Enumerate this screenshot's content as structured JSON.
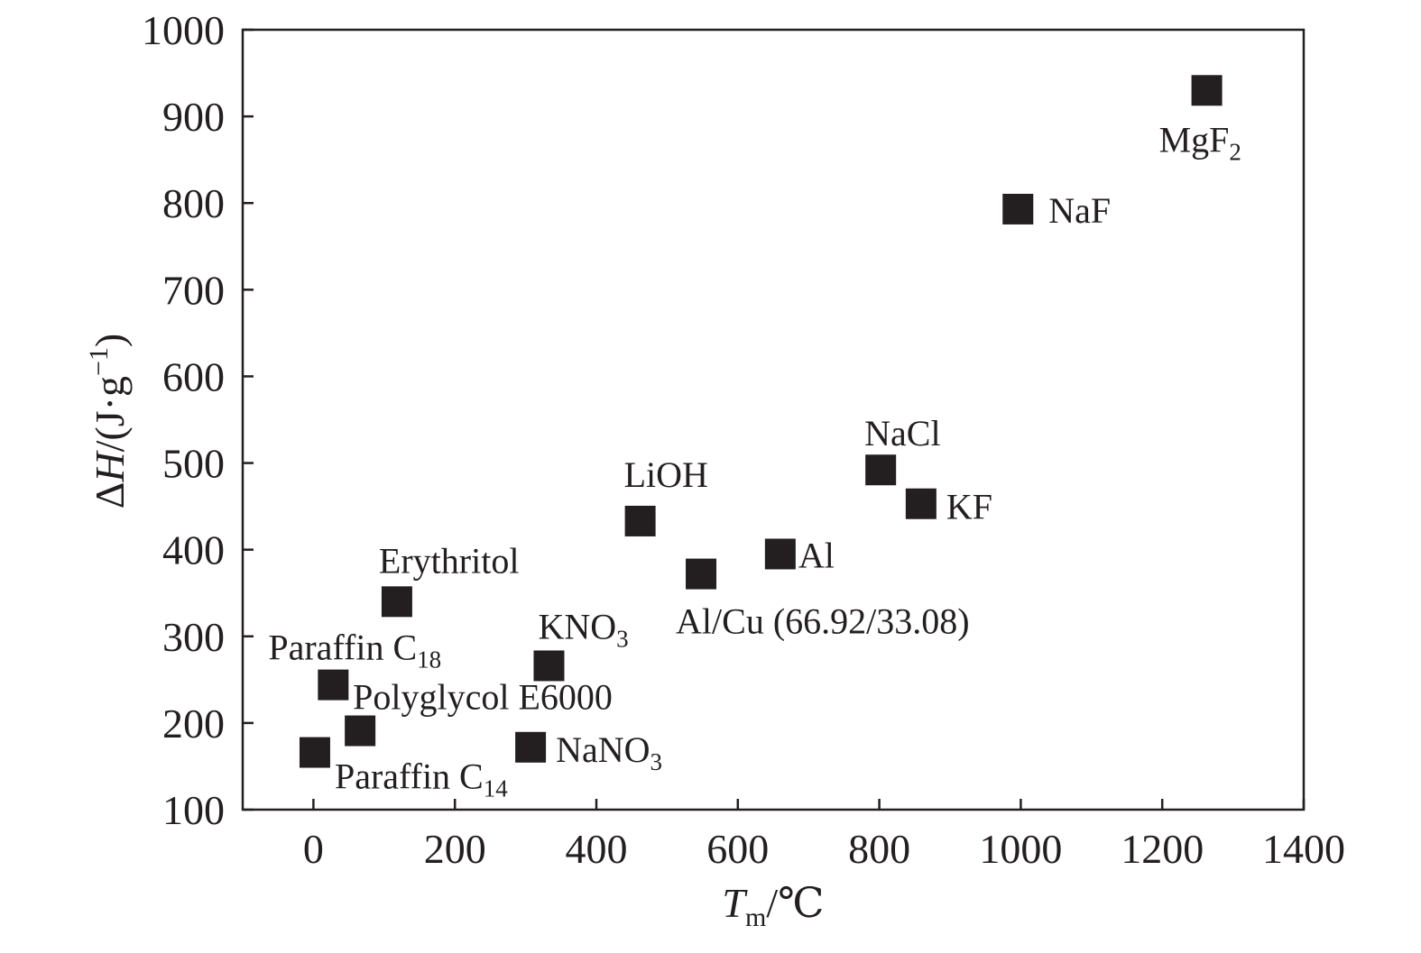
{
  "chart_data": {
    "type": "scatter",
    "xlabel": {
      "symbol": "T",
      "subscript": "m",
      "unit": "/℃"
    },
    "ylabel": {
      "prefix": "Δ",
      "symbol": "H",
      "unit": "/(J·g",
      "sup": "−1",
      "close": ")"
    },
    "xlim": [
      -100,
      1400
    ],
    "ylim": [
      100,
      1000
    ],
    "xticks": [
      "0",
      "200",
      "400",
      "600",
      "800",
      "1000",
      "1200",
      "1400"
    ],
    "xtick_values": [
      0,
      200,
      400,
      600,
      800,
      1000,
      1200,
      1400
    ],
    "yticks": [
      "100",
      "200",
      "300",
      "400",
      "500",
      "600",
      "700",
      "800",
      "900",
      "1000"
    ],
    "ytick_values": [
      100,
      200,
      300,
      400,
      500,
      600,
      700,
      800,
      900,
      1000
    ],
    "grid": false,
    "legend": "none",
    "marker_color": "#231f20",
    "points": [
      {
        "label": "Paraffin C",
        "sub": "14",
        "x": 2,
        "y": 166
      },
      {
        "label": "Paraffin C",
        "sub": "18",
        "x": 28,
        "y": 244
      },
      {
        "label": "Polyglycol E6000",
        "sub": "",
        "x": 66,
        "y": 191
      },
      {
        "label": "Erythritol",
        "sub": "",
        "x": 118,
        "y": 340
      },
      {
        "label": "NaNO",
        "sub": "3",
        "x": 307,
        "y": 172
      },
      {
        "label": "KNO",
        "sub": "3",
        "x": 333,
        "y": 266
      },
      {
        "label": "LiOH",
        "sub": "",
        "x": 462,
        "y": 433
      },
      {
        "label": "Al/Cu (66.92/33.08)",
        "sub": "",
        "x": 548,
        "y": 372
      },
      {
        "label": "Al",
        "sub": "",
        "x": 660,
        "y": 395
      },
      {
        "label": "NaCl",
        "sub": "",
        "x": 802,
        "y": 492
      },
      {
        "label": "KF",
        "sub": "",
        "x": 859,
        "y": 453
      },
      {
        "label": "NaF",
        "sub": "",
        "x": 996,
        "y": 793
      },
      {
        "label": "MgF",
        "sub": "2",
        "x": 1263,
        "y": 930
      }
    ]
  }
}
